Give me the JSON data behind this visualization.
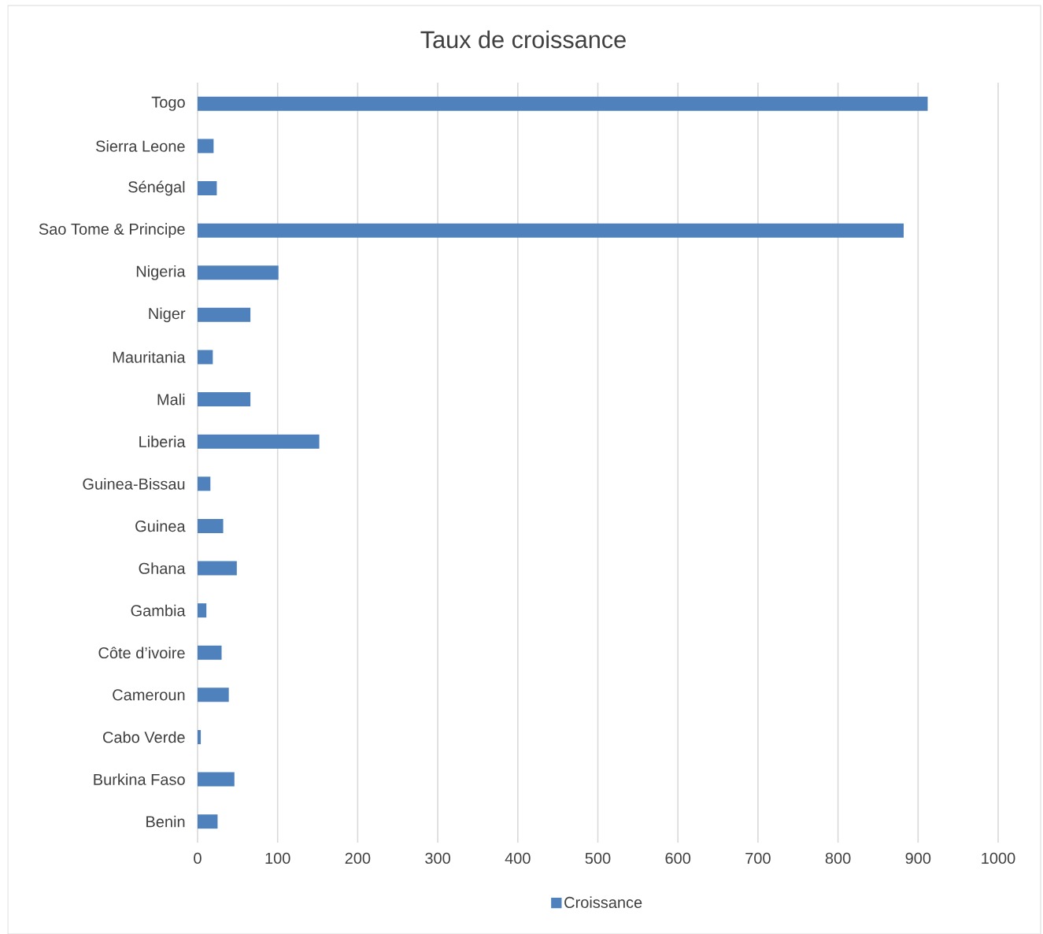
{
  "chart_data": {
    "type": "bar",
    "orientation": "horizontal",
    "title": "Taux de croissance",
    "categories": [
      "Togo",
      "Sierra Leone",
      "Sénégal",
      "Sao Tome & Principe",
      "Nigeria",
      "Niger",
      "Mauritania",
      "Mali",
      "Liberia",
      "Guinea-Bissau",
      "Guinea",
      "Ghana",
      "Gambia",
      "Côte d’ivoire",
      "Cameroun",
      "Cabo Verde",
      "Burkina Faso",
      "Benin"
    ],
    "series": [
      {
        "name": "Croissance",
        "color": "#4f81bd",
        "values": [
          912,
          20,
          24,
          882,
          101,
          66,
          19,
          66,
          152,
          16,
          32,
          49,
          11,
          30,
          39,
          4,
          46,
          25
        ]
      }
    ],
    "xlim": [
      0,
      1000
    ],
    "xticks": [
      0,
      100,
      200,
      300,
      400,
      500,
      600,
      700,
      800,
      900,
      1000
    ],
    "grid": "x",
    "legend": "bottom"
  }
}
